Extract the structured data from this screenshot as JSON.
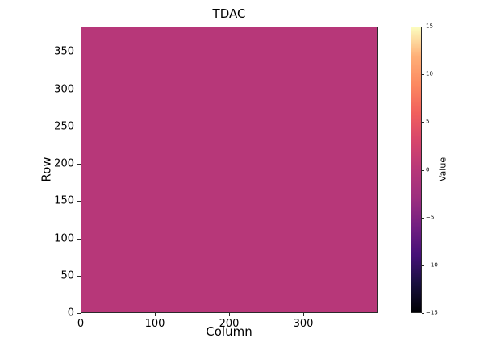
{
  "figure": {
    "background": "#ffffff"
  },
  "chart_data": {
    "type": "heatmap",
    "title": "TDAC",
    "xlabel": "Column",
    "ylabel": "Row",
    "colorbar_label": "Value",
    "x_range": [
      0,
      400
    ],
    "y_range": [
      0,
      384
    ],
    "x_ticks": [
      0,
      100,
      200,
      300
    ],
    "y_ticks": [
      0,
      50,
      100,
      150,
      200,
      250,
      300,
      350
    ],
    "colorbar_range": [
      -15,
      15
    ],
    "colorbar_ticks": [
      15,
      10,
      5,
      0,
      -5,
      -10,
      -15
    ],
    "uniform_value": 0,
    "fill_color": "#b73779",
    "colormap": "magma",
    "colormap_stops": [
      {
        "pos": 0.0,
        "color": "#000004"
      },
      {
        "pos": 0.1,
        "color": "#180f3e"
      },
      {
        "pos": 0.2,
        "color": "#451077"
      },
      {
        "pos": 0.3,
        "color": "#721f81"
      },
      {
        "pos": 0.4,
        "color": "#9c2e7f"
      },
      {
        "pos": 0.5,
        "color": "#b73779"
      },
      {
        "pos": 0.6,
        "color": "#d6456c"
      },
      {
        "pos": 0.7,
        "color": "#f1605d"
      },
      {
        "pos": 0.8,
        "color": "#fc8961"
      },
      {
        "pos": 0.9,
        "color": "#feb078"
      },
      {
        "pos": 1.0,
        "color": "#fcfdbf"
      }
    ],
    "grid": false,
    "legend": false
  }
}
